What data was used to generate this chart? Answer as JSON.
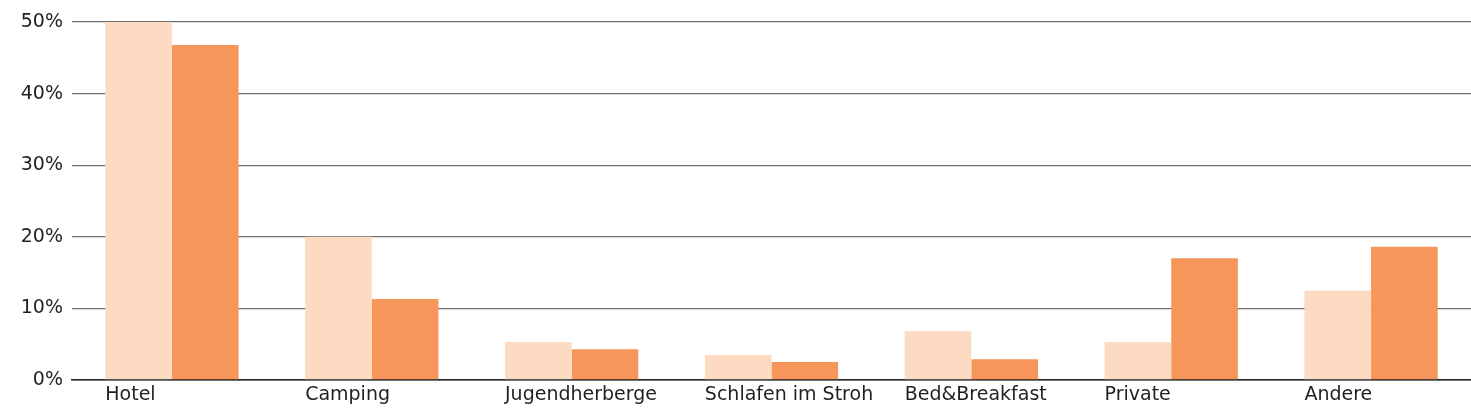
{
  "chart_data": {
    "type": "bar",
    "categories": [
      "Hotel",
      "Camping",
      "Jugendherberge",
      "Schlafen im Stroh",
      "Bed&Breakfast",
      "Private",
      "Andere"
    ],
    "series": [
      {
        "color": "#fddbc2",
        "values": [
          50,
          20,
          5.3,
          3.5,
          6.8,
          5.3,
          12.5
        ]
      },
      {
        "color": "#f6965a",
        "values": [
          46.8,
          11.3,
          4.3,
          2.5,
          2.9,
          17.0,
          18.6
        ]
      }
    ],
    "ylim": [
      0,
      50
    ],
    "yticks": [
      {
        "value": 0,
        "label": "0%"
      },
      {
        "value": 10,
        "label": "10%"
      },
      {
        "value": 20,
        "label": "20%"
      },
      {
        "value": 30,
        "label": "30%"
      },
      {
        "value": 40,
        "label": "40%"
      },
      {
        "value": 50,
        "label": "50%"
      }
    ],
    "grid": "y"
  }
}
